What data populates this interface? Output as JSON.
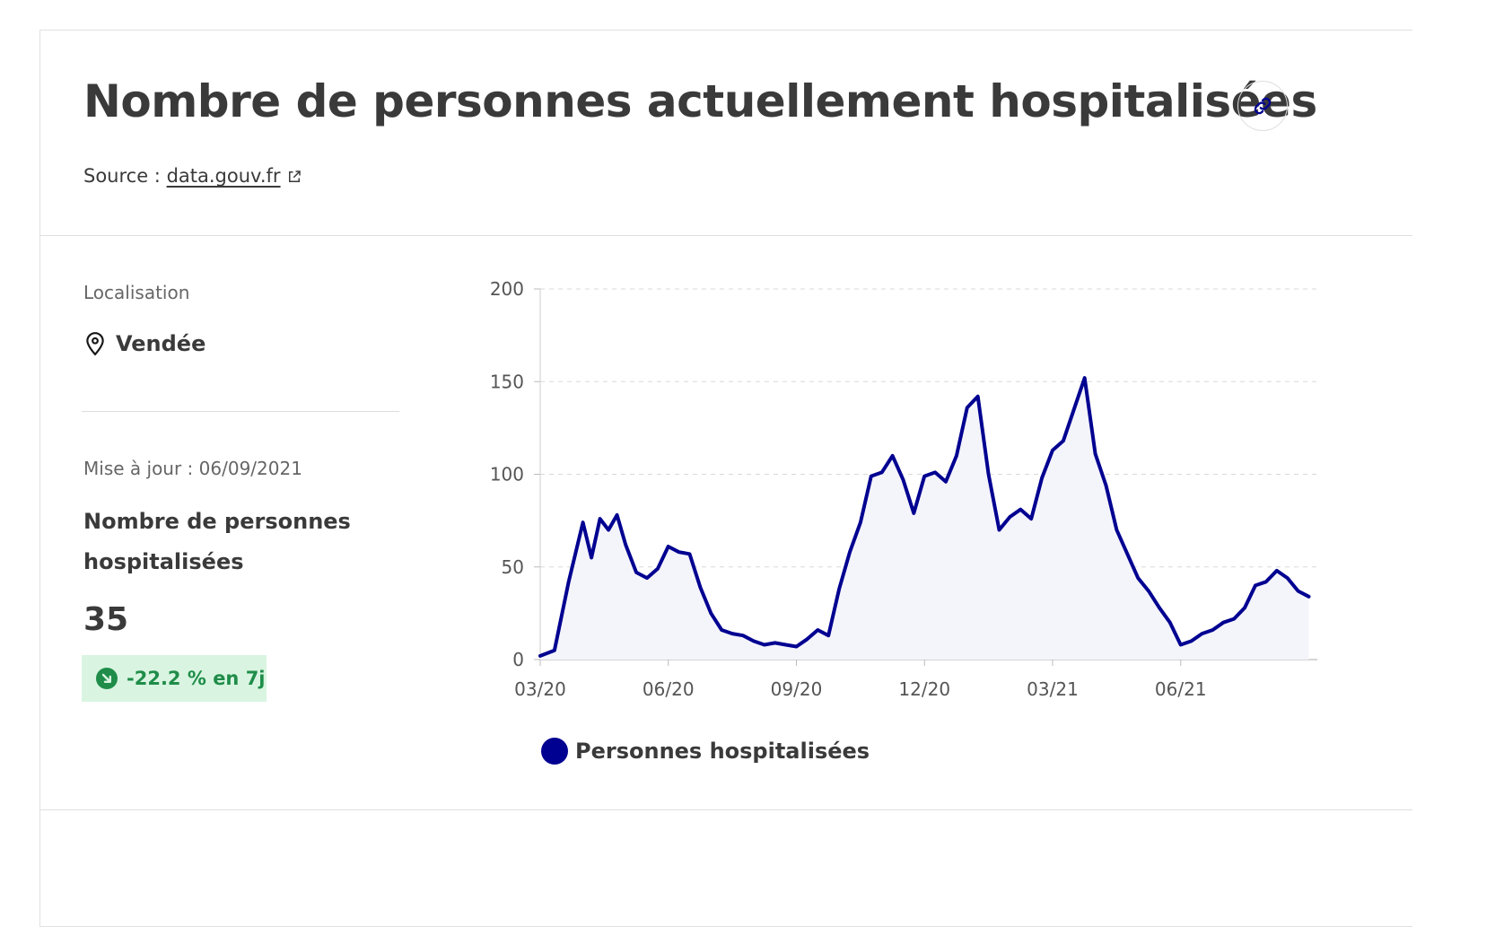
{
  "header": {
    "title": "Nombre de personnes actuellement hospitalisées",
    "source_prefix": "Source :",
    "source_link": "data.gouv.fr"
  },
  "sidebar": {
    "location_label": "Localisation",
    "location_value": "Vendée",
    "updated": "Mise à jour : 06/09/2021",
    "metric_label": "Nombre de personnes hospitalisées",
    "metric_value": "35",
    "trend": "-22.2 % en 7j"
  },
  "colors": {
    "series": "#000091",
    "area_fill": "#f4f4fb",
    "trend_bg": "#d9f5e1",
    "trend_text": "#1f8d49"
  },
  "chart_data": {
    "type": "area",
    "title": "",
    "xlabel": "",
    "ylabel": "",
    "ylim": [
      0,
      200
    ],
    "yticks": [
      "0",
      "50",
      "100",
      "150",
      "200"
    ],
    "xticks": [
      "03/20",
      "06/20",
      "09/20",
      "12/20",
      "03/21",
      "06/21"
    ],
    "grid": true,
    "legend_position": "bottom",
    "series": [
      {
        "name": "Personnes hospitalisées",
        "x": [
          "03/20",
          "03/20",
          "03/20",
          "04/20",
          "04/20",
          "04/20",
          "04/20",
          "04/20",
          "05/20",
          "05/20",
          "05/20",
          "05/20",
          "06/20",
          "06/20",
          "06/20",
          "06/20",
          "07/20",
          "07/20",
          "07/20",
          "07/20",
          "08/20",
          "08/20",
          "08/20",
          "08/20",
          "09/20",
          "09/20",
          "09/20",
          "09/20",
          "10/20",
          "10/20",
          "10/20",
          "10/20",
          "11/20",
          "11/20",
          "11/20",
          "11/20",
          "12/20",
          "12/20",
          "12/20",
          "12/20",
          "01/21",
          "01/21",
          "01/21",
          "01/21",
          "02/21",
          "02/21",
          "02/21",
          "02/21",
          "03/21",
          "03/21",
          "03/21",
          "03/21",
          "04/21",
          "04/21",
          "04/21",
          "04/21",
          "05/21",
          "05/21",
          "05/21",
          "05/21",
          "06/21",
          "06/21",
          "06/21",
          "06/21",
          "07/21",
          "07/21",
          "07/21",
          "07/21",
          "08/21",
          "08/21",
          "08/21",
          "08/21",
          "09/21"
        ],
        "values": [
          2,
          5,
          42,
          74,
          55,
          76,
          70,
          78,
          62,
          47,
          44,
          49,
          61,
          58,
          57,
          39,
          25,
          16,
          14,
          13,
          10,
          8,
          9,
          8,
          7,
          11,
          16,
          13,
          38,
          58,
          74,
          99,
          101,
          110,
          97,
          79,
          99,
          101,
          96,
          110,
          136,
          142,
          100,
          70,
          77,
          81,
          76,
          98,
          113,
          118,
          135,
          152,
          111,
          94,
          70,
          57,
          44,
          37,
          28,
          20,
          8,
          10,
          14,
          16,
          20,
          22,
          28,
          40,
          42,
          48,
          44,
          37,
          34
        ]
      }
    ]
  }
}
